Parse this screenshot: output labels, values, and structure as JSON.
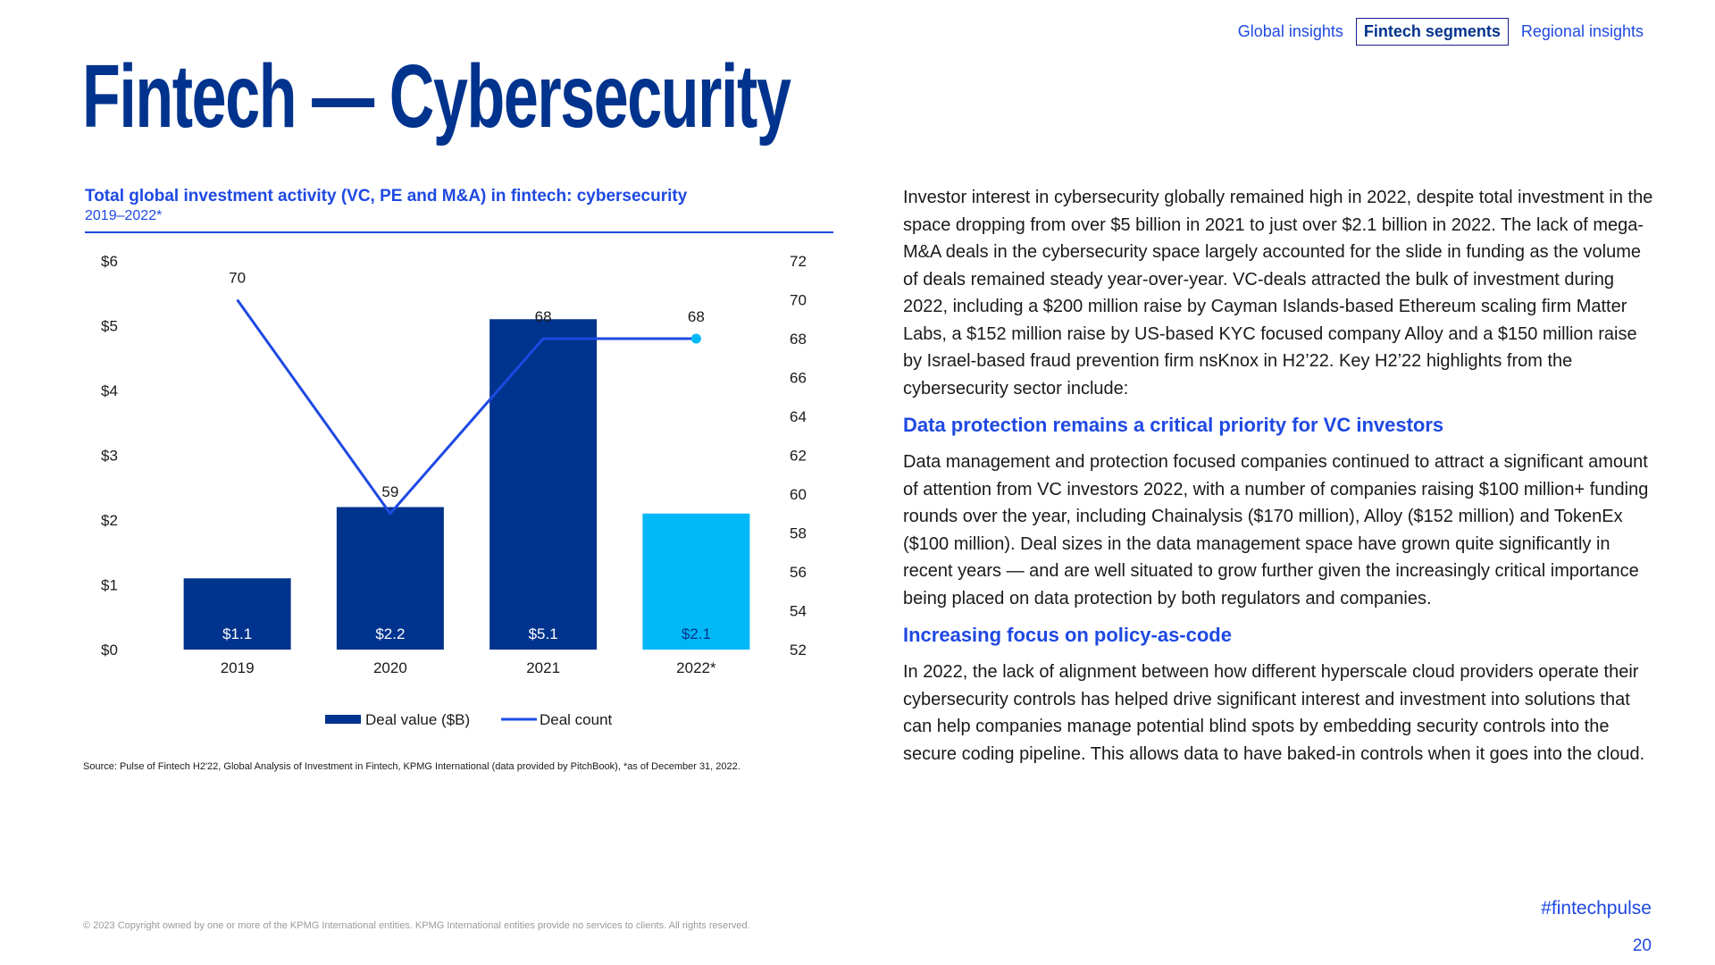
{
  "nav": {
    "items": [
      {
        "label": "Global insights",
        "active": false
      },
      {
        "label": "Fintech segments",
        "active": true
      },
      {
        "label": "Regional insights",
        "active": false
      }
    ]
  },
  "page_title": "Fintech — Cybersecurity",
  "chart_heading": "Total global investment activity (VC, PE and M&A) in fintech: cybersecurity",
  "chart_subheading": "2019–2022*",
  "chart_data": {
    "type": "bar",
    "title": "Total global investment activity (VC, PE and M&A) in fintech: cybersecurity",
    "subtitle": "2019–2022*",
    "categories": [
      "2019",
      "2020",
      "2021",
      "2022*"
    ],
    "series": [
      {
        "name": "Deal value ($B)",
        "type": "bar",
        "axis": "left",
        "values": [
          1.1,
          2.2,
          5.1,
          2.1
        ],
        "labels": [
          "$1.1",
          "$2.2",
          "$5.1",
          "$2.1"
        ],
        "colors": [
          "#00338d",
          "#00338d",
          "#00338d",
          "#00b8f5"
        ]
      },
      {
        "name": "Deal count",
        "type": "line",
        "axis": "right",
        "values": [
          70,
          59,
          68,
          68
        ],
        "labels": [
          "70",
          "59",
          "68",
          "68"
        ],
        "color": "#1e49e2"
      }
    ],
    "y_left": {
      "min": 0,
      "max": 6,
      "step": 1,
      "tick_labels": [
        "$0",
        "$1",
        "$2",
        "$3",
        "$4",
        "$5",
        "$6"
      ]
    },
    "y_right": {
      "min": 52,
      "max": 72,
      "step": 2,
      "tick_labels": [
        "52",
        "54",
        "56",
        "58",
        "60",
        "62",
        "64",
        "66",
        "68",
        "70",
        "72"
      ]
    },
    "legend": [
      {
        "label": "Deal value ($B)",
        "kind": "bar",
        "color": "#00338d"
      },
      {
        "label": "Deal count",
        "kind": "line",
        "color": "#1e49e2"
      }
    ],
    "legend_position": "bottom-center",
    "grid": false
  },
  "source_note": "Source: Pulse of Fintech H2'22, Global Analysis of Investment in Fintech, KPMG International (data provided by PitchBook), *as of December 31, 2022.",
  "body": {
    "intro": "Investor interest in cybersecurity globally remained high in 2022, despite total investment in the space dropping from over $5 billion in 2021 to just over $2.1 billion in 2022. The lack of mega-M&A deals in the cybersecurity space largely accounted for the slide in funding as the volume of deals remained steady year-over-year. VC-deals attracted the bulk of investment during 2022, including a $200 million raise by Cayman Islands-based Ethereum scaling firm Matter Labs, a $152 million raise by US-based KYC focused company Alloy and a $150 million raise by Israel-based fraud prevention firm nsKnox in H2’22. Key H2’22 highlights from the cybersecurity sector include:",
    "section1_heading": "Data protection remains a critical priority for VC investors",
    "section1_text": "Data management and protection focused companies continued to attract a significant amount of attention from VC investors 2022, with a number of companies raising $100 million+ funding rounds over the year, including Chainalysis ($170 million), Alloy ($152 million) and TokenEx ($100 million). Deal sizes in the data management space have grown quite significantly in recent years — and are well situated to grow further given the increasingly critical importance being placed on data protection by both regulators and companies.",
    "section2_heading": "Increasing focus on policy-as-code",
    "section2_text": "In 2022, the lack of alignment between how different hyperscale cloud providers operate their cybersecurity controls has helped drive significant interest and investment into solutions that can help companies manage potential blind spots by embedding security controls into the secure coding pipeline. This allows data to have baked-in controls when it goes into the cloud."
  },
  "copyright": "© 2023 Copyright owned by one or more of the KPMG International entities. KPMG International entities provide no services to clients. All rights reserved.",
  "hashtag": "#fintechpulse",
  "page_number": "20",
  "colors": {
    "primary": "#00338d",
    "accent": "#1e49e2",
    "highlight": "#00b8f5"
  }
}
